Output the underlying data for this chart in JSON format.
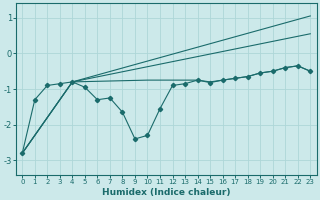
{
  "xlabel": "Humidex (Indice chaleur)",
  "xlim": [
    -0.5,
    23.5
  ],
  "ylim": [
    -3.4,
    1.4
  ],
  "yticks": [
    -3,
    -2,
    -1,
    0,
    1
  ],
  "xticks": [
    0,
    1,
    2,
    3,
    4,
    5,
    6,
    7,
    8,
    9,
    10,
    11,
    12,
    13,
    14,
    15,
    16,
    17,
    18,
    19,
    20,
    21,
    22,
    23
  ],
  "bg_color": "#cce9ea",
  "line_color": "#1a6b6b",
  "grid_color": "#aed6d8",
  "lines": [
    {
      "x": [
        0,
        4,
        23
      ],
      "y": [
        -2.8,
        -0.8,
        1.05
      ],
      "marker": false
    },
    {
      "x": [
        0,
        4,
        23
      ],
      "y": [
        -2.8,
        -0.8,
        0.55
      ],
      "marker": false
    },
    {
      "x": [
        0,
        4,
        10,
        11,
        12,
        13,
        14,
        15,
        16,
        17,
        18,
        19,
        20,
        21,
        22,
        23
      ],
      "y": [
        -2.8,
        -0.8,
        -0.75,
        -0.75,
        -0.75,
        -0.75,
        -0.75,
        -0.8,
        -0.75,
        -0.7,
        -0.65,
        -0.55,
        -0.5,
        -0.4,
        -0.35,
        -0.5
      ],
      "marker": false
    },
    {
      "x": [
        0,
        1,
        2,
        3,
        4,
        5,
        6,
        7,
        8,
        9,
        10,
        11,
        12,
        13,
        14,
        15,
        16,
        17,
        18,
        19,
        20,
        21,
        22,
        23
      ],
      "y": [
        -2.8,
        -1.3,
        -0.9,
        -0.85,
        -0.8,
        -0.95,
        -1.3,
        -1.25,
        -1.65,
        -2.4,
        -2.3,
        -1.55,
        -0.9,
        -0.85,
        -0.75,
        -0.82,
        -0.75,
        -0.7,
        -0.65,
        -0.55,
        -0.5,
        -0.4,
        -0.35,
        -0.5
      ],
      "marker": true
    }
  ]
}
